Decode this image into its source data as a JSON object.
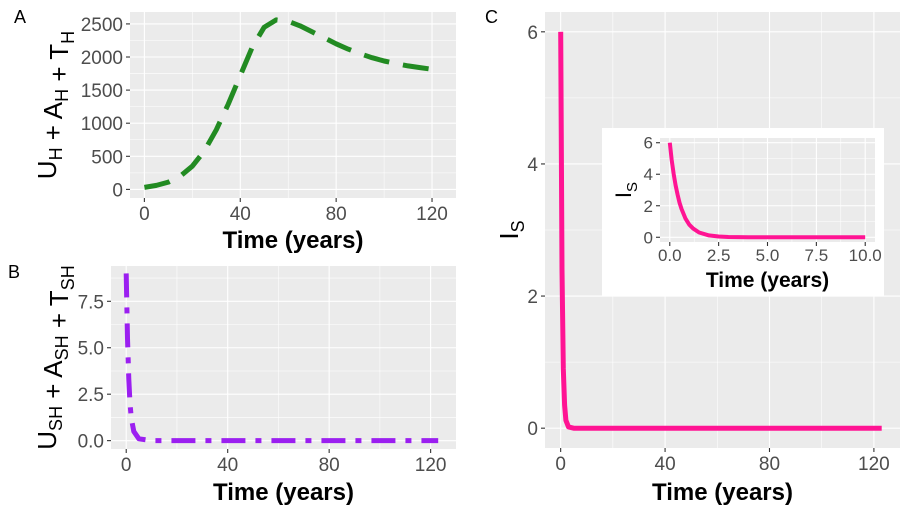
{
  "chart_data": [
    {
      "panel": "A",
      "type": "line",
      "style": "dashed",
      "color": "#228b22",
      "xlabel": "Time (years)",
      "ylabel": {
        "parts": [
          [
            "U",
            "H"
          ],
          [
            "A",
            "H"
          ],
          [
            "T",
            "H"
          ]
        ]
      },
      "xlim": [
        -6,
        130
      ],
      "ylim": [
        -130,
        2680
      ],
      "xticks": [
        0,
        40,
        80,
        120
      ],
      "yticks": [
        0,
        500,
        1000,
        1500,
        2000,
        2500
      ],
      "series": [
        {
          "x": [
            0,
            5,
            10,
            15,
            20,
            25,
            30,
            35,
            40,
            45,
            50,
            55,
            60,
            65,
            70,
            75,
            80,
            85,
            90,
            95,
            100,
            105,
            110,
            115,
            120,
            123
          ],
          "y": [
            30,
            60,
            110,
            200,
            350,
            580,
            900,
            1290,
            1720,
            2150,
            2450,
            2560,
            2540,
            2470,
            2380,
            2290,
            2200,
            2120,
            2050,
            1990,
            1940,
            1900,
            1865,
            1840,
            1815,
            1805
          ]
        }
      ]
    },
    {
      "panel": "B",
      "type": "line",
      "style": "dashdot",
      "color": "#9b1ff0",
      "xlabel": "Time (years)",
      "ylabel": {
        "parts": [
          [
            "U",
            "SH"
          ],
          [
            "A",
            "SH"
          ],
          [
            "T",
            "SH"
          ]
        ]
      },
      "xlim": [
        -6,
        130
      ],
      "ylim": [
        -0.45,
        9.4
      ],
      "xticks": [
        0,
        40,
        80,
        120
      ],
      "yticks": [
        0.0,
        2.5,
        5.0,
        7.5
      ],
      "ytick_labels": [
        "0.0",
        "2.5",
        "5.0",
        "7.5"
      ],
      "series": [
        {
          "x": [
            0,
            0.5,
            1,
            1.5,
            2,
            3,
            5,
            10,
            20,
            40,
            60,
            80,
            100,
            123
          ],
          "y": [
            9,
            5.5,
            3.3,
            2.0,
            1.2,
            0.5,
            0.1,
            0,
            0,
            0,
            0,
            0,
            0,
            0
          ]
        }
      ]
    },
    {
      "panel": "C",
      "type": "line",
      "style": "solid",
      "color": "#ff1493",
      "xlabel": "Time (years)",
      "ylabel": {
        "parts": [
          [
            "I",
            "S"
          ]
        ]
      },
      "xlim": [
        -6,
        130
      ],
      "ylim": [
        -0.3,
        6.3
      ],
      "xticks": [
        0,
        40,
        80,
        120
      ],
      "yticks": [
        0,
        2,
        4,
        6
      ],
      "series": [
        {
          "x": [
            0,
            0.5,
            1,
            1.5,
            2,
            3,
            5,
            10,
            20,
            40,
            60,
            80,
            100,
            123
          ],
          "y": [
            6,
            2.4,
            0.9,
            0.35,
            0.12,
            0.02,
            0,
            0,
            0,
            0,
            0,
            0,
            0,
            0
          ]
        }
      ]
    },
    {
      "panel": "C-inset",
      "type": "line",
      "style": "solid",
      "color": "#ff1493",
      "xlabel": "Time (years)",
      "ylabel": {
        "parts": [
          [
            "I",
            "S"
          ]
        ]
      },
      "xlim": [
        -0.5,
        10.5
      ],
      "ylim": [
        -0.3,
        6.3
      ],
      "xticks": [
        0,
        2.5,
        5,
        7.5,
        10
      ],
      "xtick_labels": [
        "0.0",
        "2.5",
        "5.0",
        "7.5",
        "10.0"
      ],
      "yticks": [
        0,
        2,
        4,
        6
      ],
      "series": [
        {
          "x": [
            0,
            0.1,
            0.2,
            0.3,
            0.4,
            0.5,
            0.6,
            0.8,
            1.0,
            1.2,
            1.5,
            2.0,
            2.5,
            3,
            4,
            5,
            6,
            7,
            8,
            9,
            10
          ],
          "y": [
            6,
            4.9,
            4.0,
            3.3,
            2.7,
            2.2,
            1.8,
            1.2,
            0.8,
            0.55,
            0.3,
            0.12,
            0.05,
            0.02,
            0,
            0,
            0,
            0,
            0,
            0,
            0
          ]
        }
      ]
    }
  ],
  "panel_tags": [
    "A",
    "B",
    "C"
  ]
}
